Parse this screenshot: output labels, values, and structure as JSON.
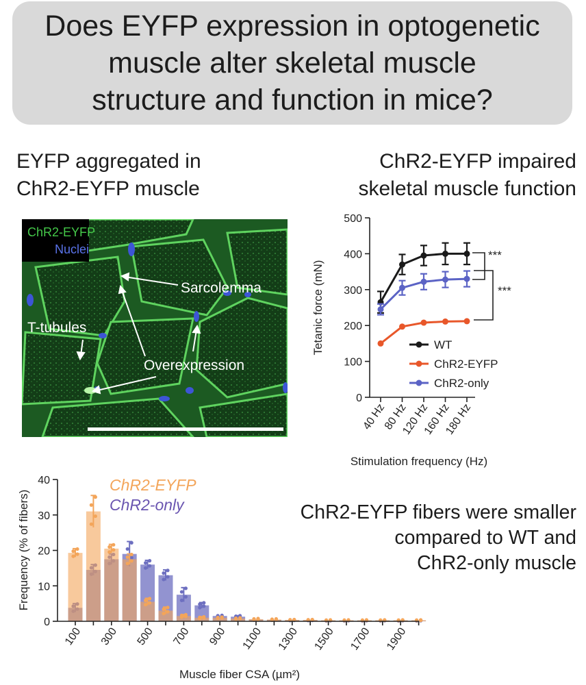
{
  "header": {
    "lines": [
      "Does EYFP expression in optogenetic",
      "muscle alter skeletal muscle",
      "structure and function in mice?"
    ]
  },
  "panel_a": {
    "heading": [
      "EYFP aggregated in",
      "ChR2-EYFP muscle"
    ],
    "legend": {
      "channel1": "ChR2-EYFP",
      "channel2": "Nuclei"
    },
    "labels": {
      "sarcolemma": "Sarcolemma",
      "t_tubules": "T-tubules",
      "overexpression": "Overexpression"
    },
    "colors": {
      "membrane": "#3fbf3f",
      "nuclei": "#4a63d8"
    }
  },
  "panel_b": {
    "heading": [
      "ChR2-EYFP impaired",
      "skeletal muscle function"
    ],
    "significance": [
      "***",
      "***"
    ]
  },
  "panel_c": {
    "findings": [
      "ChR2-EYFP fibers were smaller",
      "compared to WT and",
      "ChR2-only muscle"
    ]
  },
  "chart_data": [
    {
      "type": "line",
      "x": [
        "40 Hz",
        "80 Hz",
        "120 Hz",
        "160 Hz",
        "180 Hz"
      ],
      "xlabel": "Stimulation frequency (Hz)",
      "ylabel": "Tetanic force (mN)",
      "ylim": [
        0,
        500
      ],
      "yticks": [
        0,
        100,
        200,
        300,
        400,
        500
      ],
      "legend_position": "bottom-right",
      "grid": false,
      "series": [
        {
          "name": "WT",
          "color": "#1a1a1a",
          "values": [
            265,
            370,
            395,
            400,
            400
          ],
          "error": [
            30,
            28,
            28,
            30,
            30
          ]
        },
        {
          "name": "ChR2-EYFP",
          "color": "#e8572a",
          "values": [
            150,
            197,
            208,
            211,
            212
          ],
          "error": [
            2,
            3,
            3,
            3,
            3
          ]
        },
        {
          "name": "ChR2-only",
          "color": "#5b63c5",
          "values": [
            245,
            305,
            322,
            328,
            330
          ],
          "error": [
            15,
            20,
            22,
            22,
            22
          ]
        }
      ]
    },
    {
      "type": "bar",
      "xlabel": "Muscle fiber CSA (µm²)",
      "ylabel": "Frequency (% of fibers)",
      "ylim": [
        0,
        40
      ],
      "yticks": [
        0,
        10,
        20,
        30,
        40
      ],
      "tick_labels": [
        "100",
        "300",
        "500",
        "700",
        "900",
        "1100",
        "1300",
        "1500",
        "1700",
        "1900"
      ],
      "categories": [
        100,
        200,
        300,
        400,
        500,
        600,
        700,
        800,
        900,
        1000,
        1100,
        1200,
        1300,
        1400,
        1500,
        1600,
        1700,
        1800,
        1900,
        2000
      ],
      "legend_position": "top",
      "series": [
        {
          "name": "ChR2-EYFP",
          "color": "#f3a55a",
          "values": [
            19.3,
            31,
            20.5,
            17.5,
            5.5,
            3,
            1.5,
            1,
            1,
            0.8,
            0.6,
            0.5,
            0.4,
            0.4,
            0.3,
            0.3,
            0.3,
            0.3,
            0.3,
            0.3
          ],
          "error": [
            1.2,
            4.5,
            1.2,
            1.5,
            1,
            1,
            0.4,
            0.3,
            0.2,
            0.2,
            0.2,
            0.2,
            0.1,
            0.1,
            0.1,
            0.1,
            0.1,
            0.1,
            0.1,
            0.1
          ]
        },
        {
          "name": "ChR2-only",
          "color": "#6d6fc0",
          "values": [
            3.8,
            14.5,
            17.5,
            19,
            16,
            13,
            7.5,
            4.5,
            1.5,
            1.3,
            0.5,
            0.4,
            0.3,
            0.3,
            0.2,
            0.2,
            0.2,
            0.2,
            0.2,
            0.2
          ],
          "error": [
            1.2,
            1.5,
            1.5,
            3.5,
            1.2,
            1.5,
            2,
            0.8,
            0.2,
            0.3,
            0.2,
            0.1,
            0.1,
            0.1,
            0.1,
            0.1,
            0.1,
            0.1,
            0.1,
            0.1
          ]
        }
      ]
    }
  ]
}
